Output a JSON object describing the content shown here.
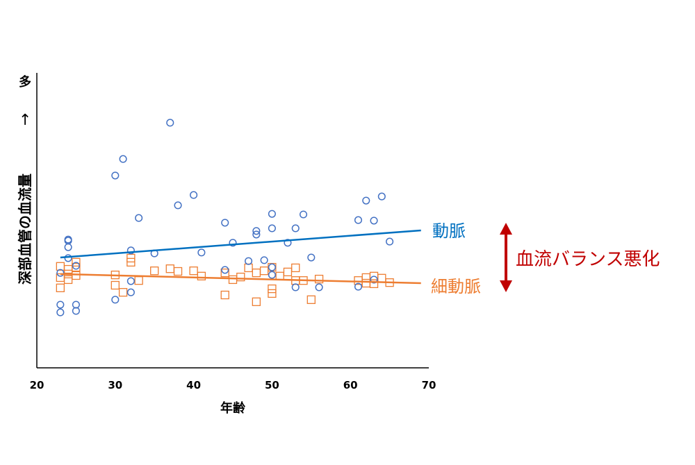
{
  "chart_data": {
    "type": "scatter",
    "xlabel": "年齢",
    "ylabel": "深部血管の血流量",
    "ylabel_arrow": "→",
    "ylabel_top": "多",
    "xlim": [
      20,
      70
    ],
    "xticks": [
      "20",
      "30",
      "40",
      "50",
      "60",
      "70"
    ],
    "ylim": [
      0,
      100
    ],
    "grid": false,
    "colors": {
      "artery_points": "#4472c4",
      "artery_line": "#0070c0",
      "arteriole": "#ed7d31",
      "annotation": "#c00000"
    },
    "series": [
      {
        "name": "動脈",
        "marker": "circle",
        "points": [
          [
            23,
            21.4
          ],
          [
            23,
            18.8
          ],
          [
            23,
            32.2
          ],
          [
            24,
            43.5
          ],
          [
            24,
            43.1
          ],
          [
            24,
            40.9
          ],
          [
            24,
            37.2
          ],
          [
            25,
            21.4
          ],
          [
            25,
            19.3
          ],
          [
            25,
            34.6
          ],
          [
            30,
            65.2
          ],
          [
            31,
            70.8
          ],
          [
            30,
            23.1
          ],
          [
            32,
            39.8
          ],
          [
            32,
            29.4
          ],
          [
            32,
            25.6
          ],
          [
            33,
            50.8
          ],
          [
            35,
            38.8
          ],
          [
            37,
            83.1
          ],
          [
            38,
            55.1
          ],
          [
            40,
            58.6
          ],
          [
            41,
            39.1
          ],
          [
            44,
            49.2
          ],
          [
            44,
            33.2
          ],
          [
            45,
            42.4
          ],
          [
            47,
            36.2
          ],
          [
            48,
            46.4
          ],
          [
            48,
            45.2
          ],
          [
            49,
            36.5
          ],
          [
            50,
            52.2
          ],
          [
            50,
            47.3
          ],
          [
            50,
            34.1
          ],
          [
            50,
            31.5
          ],
          [
            52,
            42.4
          ],
          [
            53,
            47.3
          ],
          [
            53,
            27.3
          ],
          [
            54,
            52.0
          ],
          [
            55,
            37.4
          ],
          [
            56,
            27.3
          ],
          [
            61,
            50.1
          ],
          [
            61,
            27.5
          ],
          [
            62,
            56.7
          ],
          [
            63,
            49.9
          ],
          [
            63,
            29.9
          ],
          [
            64,
            58.1
          ],
          [
            65,
            42.8
          ]
        ],
        "trend": [
          [
            23,
            37.4
          ],
          [
            69,
            46.6
          ]
        ]
      },
      {
        "name": "細動脈",
        "marker": "square",
        "points": [
          [
            23,
            34.4
          ],
          [
            23,
            30.6
          ],
          [
            23,
            27.1
          ],
          [
            24,
            33.4
          ],
          [
            24,
            31.8
          ],
          [
            24,
            29.9
          ],
          [
            25,
            35.8
          ],
          [
            25,
            34.1
          ],
          [
            25,
            31.3
          ],
          [
            30,
            31.5
          ],
          [
            30,
            28.0
          ],
          [
            31,
            25.6
          ],
          [
            32,
            37.2
          ],
          [
            32,
            35.8
          ],
          [
            33,
            29.6
          ],
          [
            35,
            32.9
          ],
          [
            37,
            33.6
          ],
          [
            38,
            32.7
          ],
          [
            40,
            32.9
          ],
          [
            41,
            31.1
          ],
          [
            44,
            24.7
          ],
          [
            44,
            32.2
          ],
          [
            45,
            29.9
          ],
          [
            46,
            30.8
          ],
          [
            47,
            33.9
          ],
          [
            48,
            32.2
          ],
          [
            48,
            22.4
          ],
          [
            49,
            32.9
          ],
          [
            50,
            34.1
          ],
          [
            50,
            26.8
          ],
          [
            50,
            25.2
          ],
          [
            51,
            31.1
          ],
          [
            52,
            32.5
          ],
          [
            53,
            33.9
          ],
          [
            53,
            29.6
          ],
          [
            54,
            29.6
          ],
          [
            55,
            23.1
          ],
          [
            56,
            30.1
          ],
          [
            61,
            29.6
          ],
          [
            62,
            30.6
          ],
          [
            62,
            28.7
          ],
          [
            63,
            31.1
          ],
          [
            63,
            28.5
          ],
          [
            64,
            30.4
          ],
          [
            65,
            28.9
          ]
        ],
        "trend": [
          [
            23,
            31.8
          ],
          [
            69,
            28.7
          ]
        ]
      }
    ],
    "annotation": "血流バランス悪化"
  }
}
